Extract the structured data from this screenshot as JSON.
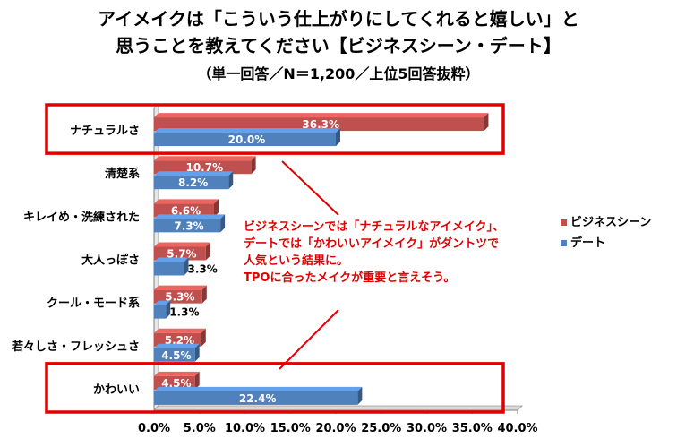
{
  "title_lines": [
    "アイメイクは「こういう仕上がりにしてくれると嬉しい」と",
    "思うことを教えてください【ビジネスシーン・デート】"
  ],
  "subtitle": "（単一回答／N＝1,200／上位5回答抜粋）",
  "annotation_lines": [
    "ビジネスシーンでは「ナチュラルなアイメイク」、",
    "デートでは「かわいいアイメイク」がダントツで",
    "人気という結果に。",
    "TPOに合ったメイクが重要と言えそう。"
  ],
  "colors": {
    "business": "#c0504d",
    "date": "#4f81bd",
    "highlight": "#e00000"
  },
  "chart_data": {
    "type": "bar",
    "orientation": "horizontal",
    "categories": [
      "ナチュラルさ",
      "清楚系",
      "キレイめ・洗練された",
      "大人っぽさ",
      "クール・モード系",
      "若々しさ・フレッシュさ",
      "かわいい"
    ],
    "series": [
      {
        "name": "ビジネスシーン",
        "values": [
          36.3,
          10.7,
          6.6,
          5.7,
          5.3,
          5.2,
          4.5
        ],
        "labels": [
          "36.3%",
          "10.7%",
          "6.6%",
          "5.7%",
          "5.3%",
          "5.2%",
          "4.5%"
        ]
      },
      {
        "name": "デート",
        "values": [
          20.0,
          8.2,
          7.3,
          3.3,
          1.3,
          4.5,
          22.4
        ],
        "labels": [
          "20.0%",
          "8.2%",
          "7.3%",
          "3.3%",
          "1.3%",
          "4.5%",
          "22.4%"
        ]
      }
    ],
    "xlim": [
      0,
      40
    ],
    "xticks": [
      "0.0%",
      "5.0%",
      "10.0%",
      "15.0%",
      "20.0%",
      "25.0%",
      "30.0%",
      "35.0%",
      "40.0%"
    ],
    "highlighted_categories": [
      "ナチュラルさ",
      "かわいい"
    ],
    "legend_position": "right"
  }
}
